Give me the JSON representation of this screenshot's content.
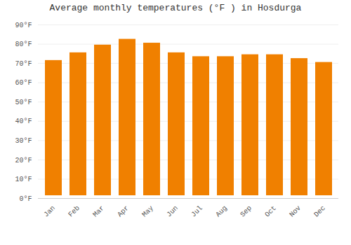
{
  "chart_data": {
    "type": "bar",
    "title": "Average monthly temperatures (°F ) in Hosdurga",
    "categories": [
      "Jan",
      "Feb",
      "Mar",
      "Apr",
      "May",
      "Jun",
      "Jul",
      "Aug",
      "Sep",
      "Oct",
      "Nov",
      "Dec"
    ],
    "values": [
      73,
      77,
      81,
      84,
      82,
      77,
      75,
      75,
      76,
      76,
      74,
      72
    ],
    "color": "#F08000",
    "ylim": [
      0,
      90
    ],
    "yticks": [
      {
        "value": 0,
        "label": "0°F"
      },
      {
        "value": 10,
        "label": "10°F"
      },
      {
        "value": 20,
        "label": "20°F"
      },
      {
        "value": 30,
        "label": "30°F"
      },
      {
        "value": 40,
        "label": "40°F"
      },
      {
        "value": 50,
        "label": "50°F"
      },
      {
        "value": 60,
        "label": "60°F"
      },
      {
        "value": 70,
        "label": "70°F"
      },
      {
        "value": 80,
        "label": "80°F"
      },
      {
        "value": 90,
        "label": "90°F"
      }
    ],
    "grid": true
  }
}
